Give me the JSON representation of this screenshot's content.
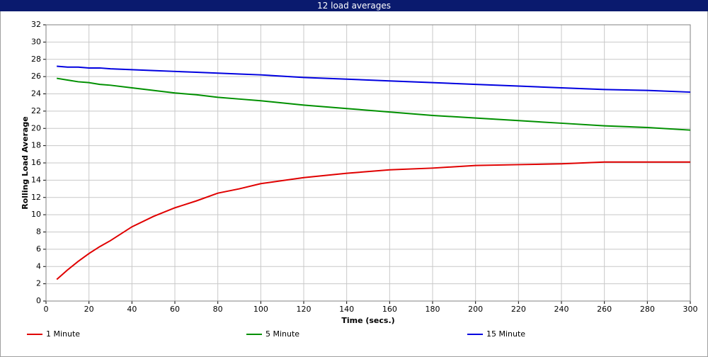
{
  "chart_data": {
    "type": "line",
    "title": "12 load averages",
    "x_label": "Time (secs.)",
    "y_label": "Rolling Load Average",
    "x": [
      5,
      10,
      15,
      20,
      25,
      30,
      40,
      50,
      60,
      70,
      80,
      90,
      100,
      120,
      140,
      160,
      180,
      200,
      220,
      240,
      260,
      280,
      300
    ],
    "series": [
      {
        "name": "1 Minute",
        "color": "#e00000",
        "values": [
          2.5,
          3.6,
          4.6,
          5.5,
          6.3,
          7.0,
          8.6,
          9.8,
          10.8,
          11.6,
          12.5,
          13.0,
          13.6,
          14.3,
          14.8,
          15.2,
          15.4,
          15.7,
          15.8,
          15.9,
          16.1,
          16.1,
          16.1
        ]
      },
      {
        "name": "5 Minute",
        "color": "#009000",
        "values": [
          25.8,
          25.6,
          25.4,
          25.3,
          25.1,
          25.0,
          24.7,
          24.4,
          24.1,
          23.9,
          23.6,
          23.4,
          23.2,
          22.7,
          22.3,
          21.9,
          21.5,
          21.2,
          20.9,
          20.6,
          20.3,
          20.1,
          19.8
        ]
      },
      {
        "name": "15 Minute",
        "color": "#0000e0",
        "values": [
          27.2,
          27.1,
          27.1,
          27.0,
          27.0,
          26.9,
          26.8,
          26.7,
          26.6,
          26.5,
          26.4,
          26.3,
          26.2,
          25.9,
          25.7,
          25.5,
          25.3,
          25.1,
          24.9,
          24.7,
          24.5,
          24.4,
          24.2
        ]
      }
    ],
    "xlim": [
      0,
      300
    ],
    "xticks": [
      0,
      20,
      40,
      60,
      80,
      100,
      120,
      140,
      160,
      180,
      200,
      220,
      240,
      260,
      280,
      300
    ],
    "ylim": [
      0,
      32
    ],
    "yticks": [
      0,
      2,
      4,
      6,
      8,
      10,
      12,
      14,
      16,
      18,
      20,
      22,
      24,
      26,
      28,
      30,
      32
    ],
    "grid": true,
    "legend": "bottom"
  }
}
